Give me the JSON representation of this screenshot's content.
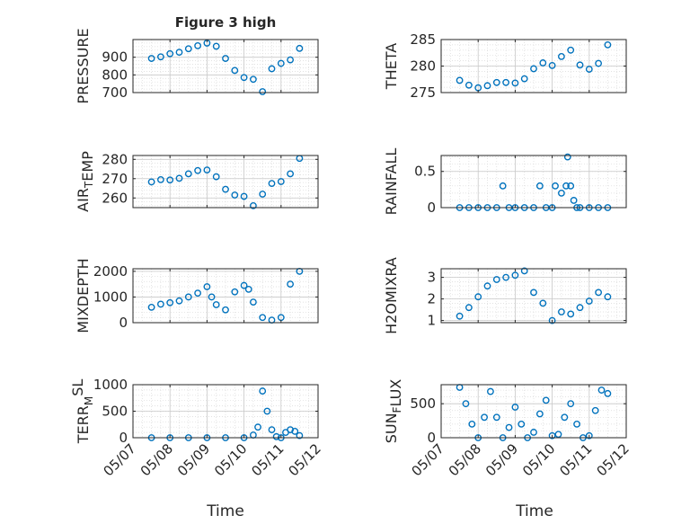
{
  "figure_title": "Figure 3 high",
  "x_label_left": "Time",
  "x_label_right": "Time",
  "colors": {
    "marker": "#0072BD",
    "axes": "#262626",
    "grid": "#d9d9d9"
  },
  "chart_data": [
    {
      "type": "scatter",
      "panel": "PRESSURE",
      "ylabel": "PRESSURE",
      "ylim": [
        700,
        1000
      ],
      "yticks": [
        700,
        800,
        900
      ],
      "xlim": [
        "05/07",
        "05/12"
      ],
      "xticks": [
        "05/07",
        "05/08",
        "05/09",
        "05/10",
        "05/11",
        "05/12"
      ],
      "grid": true,
      "x": [
        "05/07 12:00",
        "05/07 18:00",
        "05/08 00:00",
        "05/08 06:00",
        "05/08 12:00",
        "05/08 18:00",
        "05/09 00:00",
        "05/09 06:00",
        "05/09 12:00",
        "05/09 18:00",
        "05/10 00:00",
        "05/10 06:00",
        "05/10 12:00",
        "05/10 18:00",
        "05/11 00:00",
        "05/11 06:00",
        "05/11 12:00"
      ],
      "y": [
        893,
        902,
        920,
        928,
        948,
        965,
        980,
        962,
        893,
        825,
        785,
        775,
        705,
        835,
        865,
        885,
        950
      ]
    },
    {
      "type": "scatter",
      "panel": "THETA",
      "ylabel": "THETA",
      "ylim": [
        275,
        285
      ],
      "yticks": [
        275,
        280,
        285
      ],
      "xlim": [
        "05/07",
        "05/12"
      ],
      "xticks": [
        "05/07",
        "05/08",
        "05/09",
        "05/10",
        "05/11",
        "05/12"
      ],
      "grid": true,
      "x": [
        "05/07 12:00",
        "05/07 18:00",
        "05/08 00:00",
        "05/08 06:00",
        "05/08 12:00",
        "05/08 18:00",
        "05/09 00:00",
        "05/09 06:00",
        "05/09 12:00",
        "05/09 18:00",
        "05/10 00:00",
        "05/10 06:00",
        "05/10 12:00",
        "05/10 18:00",
        "05/11 00:00",
        "05/11 06:00",
        "05/11 12:00"
      ],
      "y": [
        277.3,
        276.4,
        275.9,
        276.3,
        276.9,
        276.9,
        276.8,
        277.6,
        279.5,
        280.6,
        280.1,
        281.8,
        283.0,
        280.2,
        279.4,
        280.5,
        284.0
      ]
    },
    {
      "type": "scatter",
      "panel": "AIR_TEMP",
      "ylabel": "AIR_TEMP",
      "ylim": [
        255,
        282
      ],
      "yticks": [
        260,
        270,
        280
      ],
      "xlim": [
        "05/07",
        "05/12"
      ],
      "xticks": [
        "05/07",
        "05/08",
        "05/09",
        "05/10",
        "05/11",
        "05/12"
      ],
      "grid": true,
      "x": [
        "05/07 12:00",
        "05/07 18:00",
        "05/08 00:00",
        "05/08 06:00",
        "05/08 12:00",
        "05/08 18:00",
        "05/09 00:00",
        "05/09 06:00",
        "05/09 12:00",
        "05/09 18:00",
        "05/10 00:00",
        "05/10 06:00",
        "05/10 12:00",
        "05/10 18:00",
        "05/11 00:00",
        "05/11 06:00",
        "05/11 12:00"
      ],
      "y": [
        268.3,
        269.5,
        269.3,
        270.2,
        272.5,
        274.2,
        274.5,
        271.0,
        264.5,
        261.5,
        260.8,
        256.0,
        262.0,
        267.5,
        268.5,
        272.5,
        280.5
      ]
    },
    {
      "type": "scatter",
      "panel": "RAINFALL",
      "ylabel": "RAINFALL",
      "ylim": [
        0,
        0.72
      ],
      "yticks": [
        0,
        0.5
      ],
      "xlim": [
        "05/07",
        "05/12"
      ],
      "xticks": [
        "05/07",
        "05/08",
        "05/09",
        "05/10",
        "05/11",
        "05/12"
      ],
      "grid": true,
      "x": [
        "05/07 12:00",
        "05/07 18:00",
        "05/08 00:00",
        "05/08 06:00",
        "05/08 12:00",
        "05/08 16:00",
        "05/08 20:00",
        "05/09 00:00",
        "05/09 06:00",
        "05/09 12:00",
        "05/09 16:00",
        "05/09 20:00",
        "05/10 00:00",
        "05/10 02:00",
        "05/10 06:00",
        "05/10 09:00",
        "05/10 10:00",
        "05/10 12:00",
        "05/10 14:00",
        "05/10 16:00",
        "05/10 18:00",
        "05/11 00:00",
        "05/11 06:00",
        "05/11 12:00"
      ],
      "y": [
        0,
        0,
        0,
        0,
        0,
        0.3,
        0,
        0,
        0,
        0,
        0.3,
        0,
        0,
        0.3,
        0.2,
        0.3,
        0.7,
        0.3,
        0.1,
        0,
        0,
        0,
        0,
        0
      ]
    },
    {
      "type": "scatter",
      "panel": "MIXDEPTH",
      "ylabel": "MIXDEPTH",
      "ylim": [
        0,
        2100
      ],
      "yticks": [
        0,
        1000,
        2000
      ],
      "xlim": [
        "05/07",
        "05/12"
      ],
      "xticks": [
        "05/07",
        "05/08",
        "05/09",
        "05/10",
        "05/11",
        "05/12"
      ],
      "grid": true,
      "x": [
        "05/07 12:00",
        "05/07 18:00",
        "05/08 00:00",
        "05/08 06:00",
        "05/08 12:00",
        "05/08 18:00",
        "05/09 00:00",
        "05/09 03:00",
        "05/09 06:00",
        "05/09 12:00",
        "05/09 18:00",
        "05/10 00:00",
        "05/10 03:00",
        "05/10 06:00",
        "05/10 12:00",
        "05/10 18:00",
        "05/11 00:00",
        "05/11 06:00",
        "05/11 12:00"
      ],
      "y": [
        600,
        720,
        780,
        850,
        1000,
        1150,
        1400,
        1000,
        700,
        500,
        1200,
        1450,
        1300,
        800,
        200,
        100,
        200,
        1500,
        2000
      ]
    },
    {
      "type": "scatter",
      "panel": "H2OMIXRA",
      "ylabel": "H2OMIXRA",
      "ylim": [
        0.9,
        3.4
      ],
      "yticks": [
        1,
        2,
        3
      ],
      "xlim": [
        "05/07",
        "05/12"
      ],
      "xticks": [
        "05/07",
        "05/08",
        "05/09",
        "05/10",
        "05/11",
        "05/12"
      ],
      "grid": true,
      "x": [
        "05/07 12:00",
        "05/07 18:00",
        "05/08 00:00",
        "05/08 06:00",
        "05/08 12:00",
        "05/08 18:00",
        "05/09 00:00",
        "05/09 06:00",
        "05/09 12:00",
        "05/09 18:00",
        "05/10 00:00",
        "05/10 06:00",
        "05/10 12:00",
        "05/10 18:00",
        "05/11 00:00",
        "05/11 06:00",
        "05/11 12:00"
      ],
      "y": [
        1.2,
        1.6,
        2.1,
        2.6,
        2.9,
        3.0,
        3.1,
        3.3,
        2.3,
        1.8,
        1.0,
        1.4,
        1.3,
        1.6,
        1.9,
        2.3,
        2.1
      ]
    },
    {
      "type": "scatter",
      "panel": "TERR_MSL",
      "ylabel": "TERR_MSL",
      "ylim": [
        0,
        1000
      ],
      "yticks": [
        0,
        500,
        1000
      ],
      "xlim": [
        "05/07",
        "05/12"
      ],
      "xticks": [
        "05/07",
        "05/08",
        "05/09",
        "05/10",
        "05/11",
        "05/12"
      ],
      "grid": true,
      "x": [
        "05/07 12:00",
        "05/08 00:00",
        "05/08 12:00",
        "05/09 00:00",
        "05/09 12:00",
        "05/10 00:00",
        "05/10 06:00",
        "05/10 09:00",
        "05/10 12:00",
        "05/10 15:00",
        "05/10 18:00",
        "05/10 21:00",
        "05/11 00:00",
        "05/11 03:00",
        "05/11 06:00",
        "05/11 09:00",
        "05/11 12:00"
      ],
      "y": [
        0,
        0,
        0,
        0,
        0,
        0,
        50,
        200,
        880,
        500,
        150,
        20,
        0,
        100,
        150,
        120,
        40
      ]
    },
    {
      "type": "scatter",
      "panel": "SUN_FLUX",
      "ylabel": "SUN_FLUX",
      "ylim": [
        0,
        780
      ],
      "yticks": [
        0,
        500
      ],
      "xlim": [
        "05/07",
        "05/12"
      ],
      "xticks": [
        "05/07",
        "05/08",
        "05/09",
        "05/10",
        "05/11",
        "05/12"
      ],
      "grid": true,
      "x": [
        "05/07 12:00",
        "05/07 16:00",
        "05/07 20:00",
        "05/08 00:00",
        "05/08 04:00",
        "05/08 08:00",
        "05/08 12:00",
        "05/08 16:00",
        "05/08 20:00",
        "05/09 00:00",
        "05/09 04:00",
        "05/09 08:00",
        "05/09 12:00",
        "05/09 16:00",
        "05/09 20:00",
        "05/10 00:00",
        "05/10 04:00",
        "05/10 08:00",
        "05/10 12:00",
        "05/10 16:00",
        "05/10 20:00",
        "05/11 00:00",
        "05/11 04:00",
        "05/11 08:00",
        "05/11 12:00"
      ],
      "y": [
        740,
        500,
        200,
        0,
        300,
        680,
        300,
        0,
        150,
        450,
        200,
        0,
        80,
        350,
        550,
        30,
        50,
        300,
        500,
        200,
        0,
        30,
        400,
        700,
        650
      ]
    }
  ]
}
